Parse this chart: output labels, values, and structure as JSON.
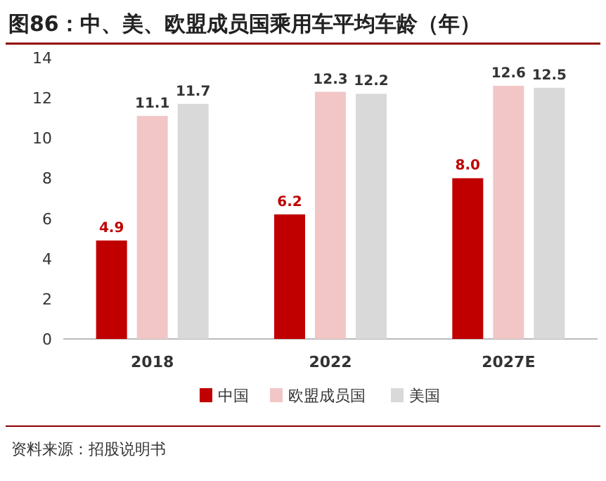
{
  "chart_data": {
    "type": "bar",
    "title": "图86：中、美、欧盟成员国乘用车平均车龄（年）",
    "categories": [
      "2018",
      "2022",
      "2027E"
    ],
    "series": [
      {
        "name": "中国",
        "color": "#c00000",
        "values": [
          4.9,
          6.2,
          8.0
        ],
        "value_labels": [
          "4.9",
          "6.2",
          "8.0"
        ]
      },
      {
        "name": "欧盟成员国",
        "color": "#f2c6c6",
        "values": [
          11.1,
          12.3,
          12.6
        ],
        "value_labels": [
          "11.1",
          "12.3",
          "12.6"
        ]
      },
      {
        "name": "美国",
        "color": "#d9d9d9",
        "values": [
          11.7,
          12.2,
          12.5
        ],
        "value_labels": [
          "11.7",
          "12.2",
          "12.5"
        ]
      }
    ],
    "ylim": [
      0,
      14
    ],
    "yticks": [
      0,
      2,
      4,
      6,
      8,
      10,
      12,
      14
    ],
    "grid": false,
    "legend": "bottom",
    "annotations": [
      "资料来源：招股说明书"
    ]
  }
}
